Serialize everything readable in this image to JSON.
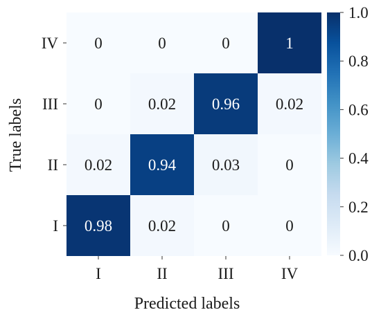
{
  "chart_data": {
    "type": "heatmap",
    "title": "",
    "xlabel": "Predicted labels",
    "ylabel": "True labels",
    "x_categories": [
      "I",
      "II",
      "III",
      "IV"
    ],
    "y_categories": [
      "IV",
      "III",
      "II",
      "I"
    ],
    "values": [
      [
        0,
        0,
        0,
        1
      ],
      [
        0,
        0.02,
        0.96,
        0.02
      ],
      [
        0.02,
        0.94,
        0.03,
        0
      ],
      [
        0.98,
        0.02,
        0,
        0
      ]
    ],
    "cell_labels": [
      [
        "0",
        "0",
        "0",
        "1"
      ],
      [
        "0",
        "0.02",
        "0.96",
        "0.02"
      ],
      [
        "0.02",
        "0.94",
        "0.03",
        "0"
      ],
      [
        "0.98",
        "0.02",
        "0",
        "0"
      ]
    ],
    "colorbar": {
      "min": 0.0,
      "max": 1.0,
      "ticks": [
        "0.0",
        "0.2",
        "0.4",
        "0.6",
        "0.8",
        "1.0"
      ],
      "colormap": "Blues",
      "low_color": "#f7fbff",
      "high_color": "#08306b"
    },
    "grid": false
  }
}
